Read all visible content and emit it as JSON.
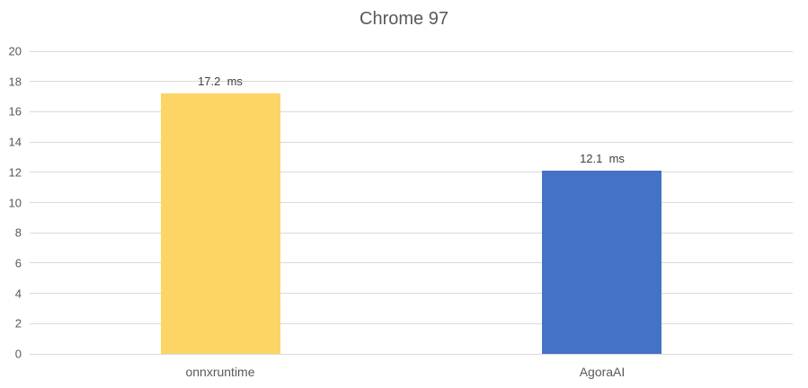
{
  "chart_data": {
    "type": "bar",
    "title": "Chrome 97",
    "categories": [
      "onnxruntime",
      "AgoraAI"
    ],
    "values": [
      17.2,
      12.1
    ],
    "data_labels": [
      "17.2  ms",
      "12.1  ms"
    ],
    "unit": "ms",
    "bar_colors": [
      "#FCD564",
      "#4472C4"
    ],
    "xlabel": "",
    "ylabel": "",
    "ylim": [
      0,
      20
    ],
    "ytick_step": 2,
    "yticks": [
      0,
      2,
      4,
      6,
      8,
      10,
      12,
      14,
      16,
      18,
      20
    ],
    "grid": "horizontal",
    "legend": "none"
  },
  "colors": {
    "title_text": "#595959",
    "axis_text": "#595959",
    "data_label_text": "#404040",
    "gridline": "#D9D9D9",
    "background": "#FFFFFF"
  }
}
